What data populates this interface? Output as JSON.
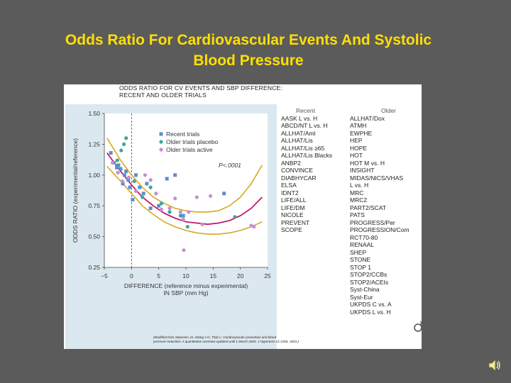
{
  "slide": {
    "title_line1": "Odds Ratio For Cardiovascular Events And Systolic",
    "title_line2": "Blood Pressure"
  },
  "figure": {
    "title_line1": "ODDS RATIO FOR CV EVENTS AND SBP DIFFERENCE:",
    "title_line2": "RECENT AND OLDER TRIALS",
    "footnote_line1": "(Modified from Staessen JA, Wang J-G, Thijs L: Cardiovascular prevention and blood",
    "footnote_line2": "pressure reduction: A quantitative overview updated until 1 March 2003. J Hypertens 21:1055, 2003.)",
    "recent_header": "Recent",
    "older_header": "Older",
    "recent_trials": [
      "AASK L vs. H",
      "ABCD/NT L vs. H",
      "ALLHAT/Aml",
      "ALLHAT/Lis",
      "ALLHAT/Lis ≥65",
      "ALLHAT/Lis Blacks",
      "ANBP2",
      "CONVINCE",
      "DIABHYCAR",
      "ELSA",
      "IDNT2",
      "LIFE/ALL",
      "LIFE/DM",
      "NICOLE",
      "PREVENT",
      "SCOPE"
    ],
    "older_trials": [
      "ALLHAT/Dox",
      "ATMH",
      "EWPHE",
      "HEP",
      "HOPE",
      "HOT",
      "HOT M vs. H",
      "INSIGHT",
      "MIDAS/NICS/VHAS",
      "L vs. H",
      "MRC",
      "MRC2",
      "PART2/SCAT",
      "PATS",
      "PROGRESS/Per",
      "PROGRESSION/Com",
      "RCT70-80",
      "RENAAL",
      "SHEP",
      "STONE",
      "STOP 1",
      "STOP2/CCBs",
      "STOP2/ACEIs",
      "Syst-China",
      "Syst-Eur",
      "UKPDS C vs. A",
      "UKPDS L vs. H"
    ]
  },
  "colors": {
    "recent": "#5b8fc9",
    "placebo": "#3aa79a",
    "active": "#c58fd0",
    "fit_line": "#c2186b",
    "ci_line": "#d7a820",
    "title": "#ffe000"
  },
  "chart_data": {
    "type": "scatter",
    "title": "ODDS RATIO FOR CV EVENTS AND SBP DIFFERENCE: RECENT AND OLDER TRIALS",
    "xlabel_line1": "DIFFERENCE (reference minus experimental)",
    "xlabel_line2": "IN SBP (mm Hg)",
    "ylabel": "ODDS RATIO (experimental/reference)",
    "xlim": [
      -5,
      25
    ],
    "ylim": [
      0.25,
      1.5
    ],
    "xticks": [
      -5,
      0,
      5,
      10,
      15,
      20,
      25
    ],
    "xtick_labels": [
      "−5",
      "0",
      "5",
      "10",
      "15",
      "20",
      "25"
    ],
    "yticks": [
      0.25,
      0.5,
      0.75,
      1.0,
      1.25,
      1.5
    ],
    "ytick_labels": [
      "0.25",
      "0.50",
      "0.75",
      "1.00",
      "1.25",
      "1.50"
    ],
    "annotation": "P<.0001",
    "legend": [
      "Recent trials",
      "Older trials placebo",
      "Older trials active"
    ],
    "legend_position": "top-left",
    "series": [
      {
        "name": "Recent trials",
        "marker": "square",
        "points": [
          [
            -3.8,
            1.18
          ],
          [
            -3.2,
            1.1
          ],
          [
            -2.7,
            1.06
          ],
          [
            -2.4,
            1.08
          ],
          [
            -2,
            1.05
          ],
          [
            -1.6,
            0.93
          ],
          [
            -1.3,
            1.0
          ],
          [
            -1,
            1.03
          ],
          [
            -0.6,
            0.96
          ],
          [
            -0.3,
            0.9
          ],
          [
            0.2,
            0.8
          ],
          [
            0.8,
            1.0
          ],
          [
            1.5,
            0.9
          ],
          [
            2.2,
            0.85
          ],
          [
            2.8,
            0.93
          ],
          [
            3.5,
            0.73
          ],
          [
            5,
            0.75
          ],
          [
            6.5,
            0.97
          ],
          [
            8,
            1.0
          ],
          [
            9.5,
            0.67
          ],
          [
            17,
            0.85
          ]
        ]
      },
      {
        "name": "Older trials placebo",
        "marker": "circle",
        "points": [
          [
            -2.6,
            1.12
          ],
          [
            -1.9,
            1.2
          ],
          [
            -1.4,
            1.25
          ],
          [
            -1,
            1.3
          ],
          [
            0.5,
            0.95
          ],
          [
            2,
            0.82
          ],
          [
            3.5,
            0.9
          ],
          [
            5.5,
            0.77
          ],
          [
            7,
            0.7
          ],
          [
            9,
            0.67
          ],
          [
            10.3,
            0.58
          ],
          [
            19,
            0.66
          ]
        ]
      },
      {
        "name": "Older trials active",
        "marker": "circle",
        "points": [
          [
            -3.5,
            1.1
          ],
          [
            -2.5,
            1.02
          ],
          [
            -1.7,
            0.95
          ],
          [
            -0.5,
            0.98
          ],
          [
            0.8,
            0.87
          ],
          [
            2.5,
            1.0
          ],
          [
            3.5,
            0.96
          ],
          [
            4.5,
            0.85
          ],
          [
            5.5,
            0.72
          ],
          [
            7,
            0.73
          ],
          [
            8,
            0.81
          ],
          [
            9,
            0.7
          ],
          [
            9.5,
            0.64
          ],
          [
            10.5,
            0.7
          ],
          [
            12,
            0.82
          ],
          [
            13,
            0.6
          ],
          [
            14.5,
            0.83
          ],
          [
            9.6,
            0.39
          ],
          [
            22,
            0.59
          ],
          [
            22.5,
            0.58
          ]
        ]
      }
    ],
    "fit_curve": [
      [
        -4.5,
        1.18
      ],
      [
        -2,
        1.03
      ],
      [
        0,
        0.92
      ],
      [
        2,
        0.82
      ],
      [
        4,
        0.75
      ],
      [
        6,
        0.69
      ],
      [
        8,
        0.65
      ],
      [
        10,
        0.62
      ],
      [
        12,
        0.61
      ],
      [
        14,
        0.6
      ],
      [
        16,
        0.61
      ],
      [
        18,
        0.63
      ],
      [
        20,
        0.67
      ],
      [
        22,
        0.73
      ],
      [
        24,
        0.82
      ]
    ],
    "ci_upper": [
      [
        -4.5,
        1.3
      ],
      [
        -2,
        1.12
      ],
      [
        0,
        1.0
      ],
      [
        2,
        0.9
      ],
      [
        4,
        0.82
      ],
      [
        6,
        0.77
      ],
      [
        8,
        0.73
      ],
      [
        10,
        0.71
      ],
      [
        12,
        0.7
      ],
      [
        14,
        0.7
      ],
      [
        16,
        0.71
      ],
      [
        18,
        0.75
      ],
      [
        20,
        0.82
      ],
      [
        22,
        0.93
      ],
      [
        24,
        1.08
      ]
    ],
    "ci_lower": [
      [
        -4.5,
        1.07
      ],
      [
        -2,
        0.95
      ],
      [
        0,
        0.85
      ],
      [
        2,
        0.75
      ],
      [
        4,
        0.68
      ],
      [
        6,
        0.62
      ],
      [
        8,
        0.58
      ],
      [
        10,
        0.55
      ],
      [
        12,
        0.53
      ],
      [
        14,
        0.52
      ],
      [
        16,
        0.52
      ],
      [
        18,
        0.53
      ],
      [
        20,
        0.55
      ],
      [
        22,
        0.58
      ],
      [
        24,
        0.62
      ]
    ]
  }
}
